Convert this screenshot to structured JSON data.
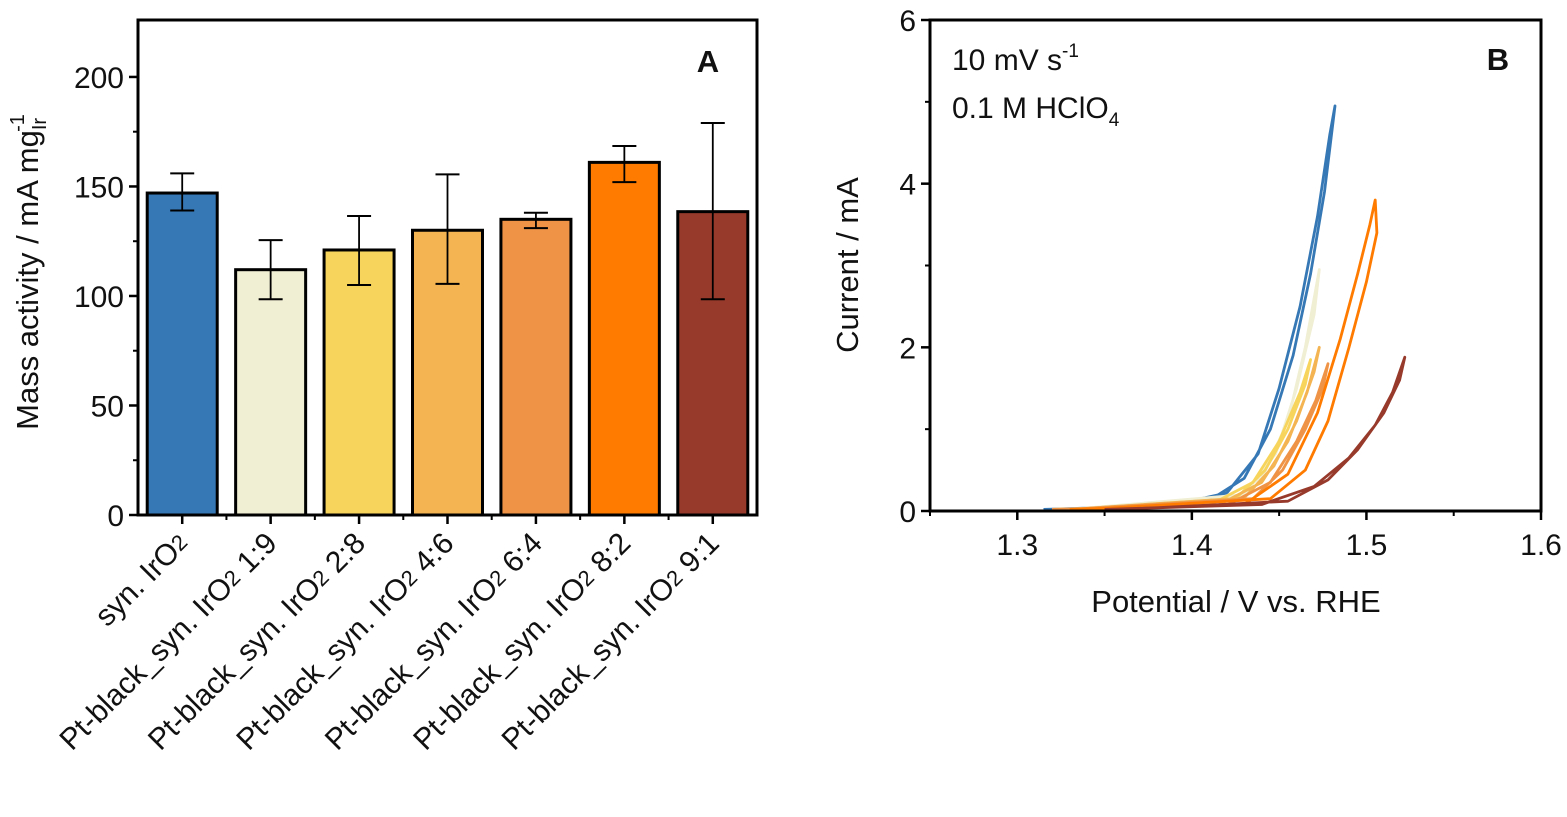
{
  "chart_data": [
    {
      "panel": "A",
      "type": "bar",
      "ylabel": {
        "main": "Mass activity  /  mA mg",
        "sub": "Ir",
        "sup": "-1"
      },
      "ylim": [
        0,
        226
      ],
      "yticks": [
        0,
        50,
        100,
        150,
        200
      ],
      "yminor": [
        25,
        75,
        125,
        175
      ],
      "grid": false,
      "categories": [
        {
          "pre": "syn. IrO",
          "sub": "2",
          "post": ""
        },
        {
          "pre": "Pt-black_syn. IrO",
          "sub": "2",
          "post": " 1:9"
        },
        {
          "pre": "Pt-black_syn. IrO",
          "sub": "2",
          "post": " 2:8"
        },
        {
          "pre": "Pt-black_syn. IrO",
          "sub": "2",
          "post": " 4:6"
        },
        {
          "pre": "Pt-black_syn. IrO",
          "sub": "2",
          "post": " 6:4"
        },
        {
          "pre": "Pt-black_syn. IrO",
          "sub": "2",
          "post": " 8:2"
        },
        {
          "pre": "Pt-black_syn. IrO",
          "sub": "2",
          "post": " 9:1"
        }
      ],
      "values": [
        147,
        112,
        121,
        130,
        135,
        161,
        138.5
      ],
      "error_low": [
        139,
        98.5,
        105,
        105.5,
        131,
        152,
        98.5
      ],
      "error_high": [
        156,
        125.5,
        136.5,
        155.5,
        138,
        168.5,
        179
      ],
      "colors": [
        "#3678b5",
        "#f0eed3",
        "#f7d55c",
        "#f3b451",
        "#ef9447",
        "#ff7b00",
        "#983a2b"
      ]
    },
    {
      "panel": "B",
      "type": "line",
      "xlabel": "Potential  /  V vs. RHE",
      "ylabel": "Current  /  mA",
      "xlim": [
        1.25,
        1.6
      ],
      "ylim": [
        0,
        6
      ],
      "xticks": [
        "1.3",
        "1.4",
        "1.5",
        "1.6"
      ],
      "xminor": [
        1.25,
        1.35,
        1.45,
        1.55
      ],
      "yticks": [
        "0",
        "2",
        "4",
        "6"
      ],
      "yminor": [
        1,
        3,
        5
      ],
      "grid": false,
      "annotation": {
        "line1_main": "10 mV s",
        "line1_sup": "-1",
        "line2_main": "0.1 M HClO",
        "line2_sub": "4"
      },
      "series": [
        {
          "color": "#3678b5",
          "points": [
            [
              1.315,
              0.02
            ],
            [
              1.38,
              0.06
            ],
            [
              1.41,
              0.13
            ],
            [
              1.43,
              0.4
            ],
            [
              1.445,
              1.0
            ],
            [
              1.458,
              1.9
            ],
            [
              1.468,
              2.9
            ],
            [
              1.476,
              3.9
            ],
            [
              1.482,
              4.95
            ],
            [
              1.479,
              4.6
            ],
            [
              1.472,
              3.6
            ],
            [
              1.462,
              2.5
            ],
            [
              1.45,
              1.5
            ],
            [
              1.438,
              0.7
            ],
            [
              1.42,
              0.22
            ],
            [
              1.39,
              0.08
            ],
            [
              1.32,
              0.02
            ]
          ]
        },
        {
          "color": "#f0eed3",
          "points": [
            [
              1.32,
              0.02
            ],
            [
              1.41,
              0.08
            ],
            [
              1.44,
              0.4
            ],
            [
              1.455,
              1.1
            ],
            [
              1.465,
              2.0
            ],
            [
              1.473,
              2.95
            ],
            [
              1.47,
              2.4
            ],
            [
              1.46,
              1.5
            ],
            [
              1.448,
              0.7
            ],
            [
              1.43,
              0.2
            ],
            [
              1.33,
              0.02
            ]
          ]
        },
        {
          "color": "#f7d55c",
          "points": [
            [
              1.32,
              0.02
            ],
            [
              1.41,
              0.07
            ],
            [
              1.435,
              0.35
            ],
            [
              1.45,
              0.85
            ],
            [
              1.462,
              1.45
            ],
            [
              1.468,
              1.85
            ],
            [
              1.465,
              1.55
            ],
            [
              1.455,
              1.0
            ],
            [
              1.442,
              0.5
            ],
            [
              1.425,
              0.15
            ],
            [
              1.33,
              0.02
            ]
          ]
        },
        {
          "color": "#f3b451",
          "points": [
            [
              1.32,
              0.02
            ],
            [
              1.415,
              0.07
            ],
            [
              1.44,
              0.35
            ],
            [
              1.455,
              0.85
            ],
            [
              1.466,
              1.45
            ],
            [
              1.473,
              2.0
            ],
            [
              1.47,
              1.7
            ],
            [
              1.46,
              1.1
            ],
            [
              1.447,
              0.55
            ],
            [
              1.43,
              0.16
            ],
            [
              1.33,
              0.02
            ]
          ]
        },
        {
          "color": "#ef9447",
          "points": [
            [
              1.32,
              0.02
            ],
            [
              1.42,
              0.07
            ],
            [
              1.445,
              0.35
            ],
            [
              1.46,
              0.85
            ],
            [
              1.471,
              1.35
            ],
            [
              1.478,
              1.8
            ],
            [
              1.475,
              1.5
            ],
            [
              1.465,
              1.0
            ],
            [
              1.452,
              0.5
            ],
            [
              1.435,
              0.15
            ],
            [
              1.33,
              0.02
            ]
          ]
        },
        {
          "color": "#ff7b00",
          "points": [
            [
              1.33,
              0.02
            ],
            [
              1.43,
              0.08
            ],
            [
              1.455,
              0.45
            ],
            [
              1.472,
              1.2
            ],
            [
              1.485,
              2.1
            ],
            [
              1.495,
              2.9
            ],
            [
              1.502,
              3.5
            ],
            [
              1.505,
              3.8
            ],
            [
              1.506,
              3.4
            ],
            [
              1.5,
              2.8
            ],
            [
              1.49,
              2.0
            ],
            [
              1.478,
              1.1
            ],
            [
              1.465,
              0.5
            ],
            [
              1.445,
              0.15
            ],
            [
              1.34,
              0.02
            ]
          ]
        },
        {
          "color": "#983a2b",
          "points": [
            [
              1.35,
              0.02
            ],
            [
              1.44,
              0.08
            ],
            [
              1.47,
              0.3
            ],
            [
              1.49,
              0.65
            ],
            [
              1.505,
              1.05
            ],
            [
              1.515,
              1.45
            ],
            [
              1.522,
              1.88
            ],
            [
              1.519,
              1.6
            ],
            [
              1.51,
              1.2
            ],
            [
              1.495,
              0.75
            ],
            [
              1.478,
              0.38
            ],
            [
              1.455,
              0.12
            ],
            [
              1.36,
              0.02
            ]
          ]
        }
      ]
    }
  ]
}
